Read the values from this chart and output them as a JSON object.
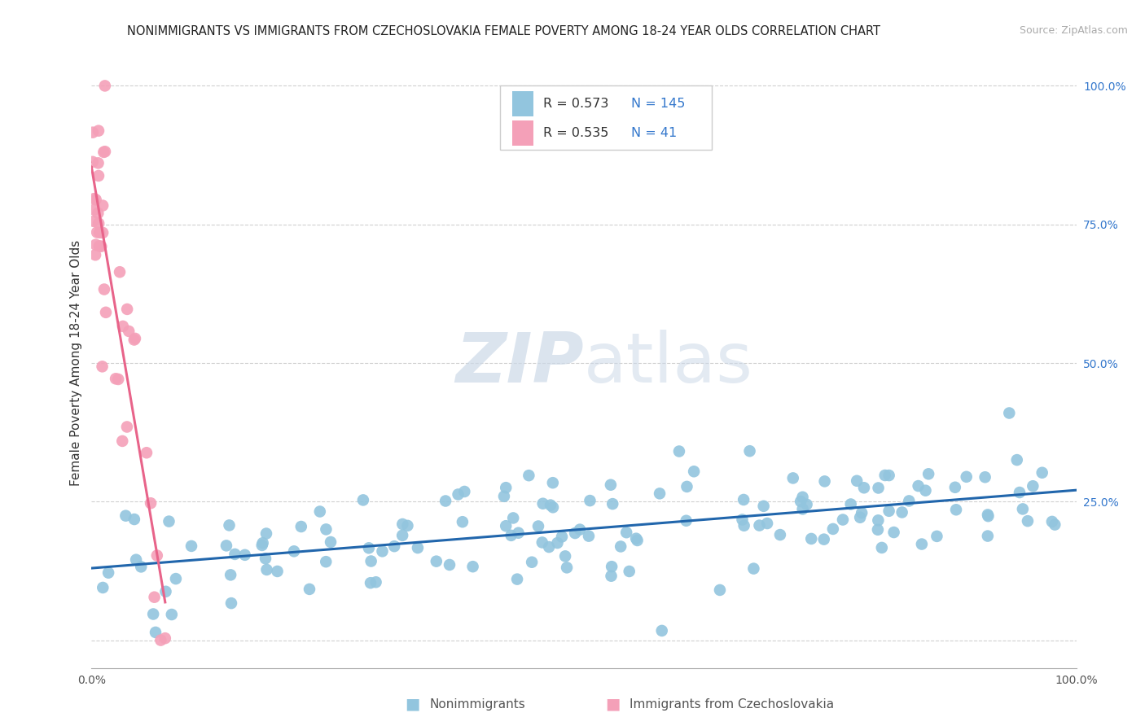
{
  "title": "NONIMMIGRANTS VS IMMIGRANTS FROM CZECHOSLOVAKIA FEMALE POVERTY AMONG 18-24 YEAR OLDS CORRELATION CHART",
  "source": "Source: ZipAtlas.com",
  "ylabel": "Female Poverty Among 18-24 Year Olds",
  "xlim": [
    0,
    1.0
  ],
  "ylim": [
    -0.05,
    1.05
  ],
  "x_ticks": [
    0.0,
    0.25,
    0.5,
    0.75,
    1.0
  ],
  "x_tick_labels": [
    "0.0%",
    "",
    "",
    "",
    "100.0%"
  ],
  "y_ticks": [
    0.0,
    0.25,
    0.5,
    0.75,
    1.0
  ],
  "y_tick_labels": [
    "",
    "25.0%",
    "50.0%",
    "75.0%",
    "100.0%"
  ],
  "legend_R1": "0.573",
  "legend_N1": "145",
  "legend_R2": "0.535",
  "legend_N2": "41",
  "blue_dot_color": "#92c5de",
  "pink_dot_color": "#f4a0b8",
  "blue_line_color": "#2166ac",
  "pink_line_color": "#e8648a",
  "grid_color": "#d0d0d0",
  "watermark_color": "#ccd9e8",
  "background_color": "#ffffff",
  "title_fontsize": 10.5,
  "source_fontsize": 9,
  "axis_label_fontsize": 11,
  "tick_fontsize": 10,
  "legend_value_color": "#3377cc",
  "legend_label_color": "#333333",
  "bottom_label_color": "#555555"
}
